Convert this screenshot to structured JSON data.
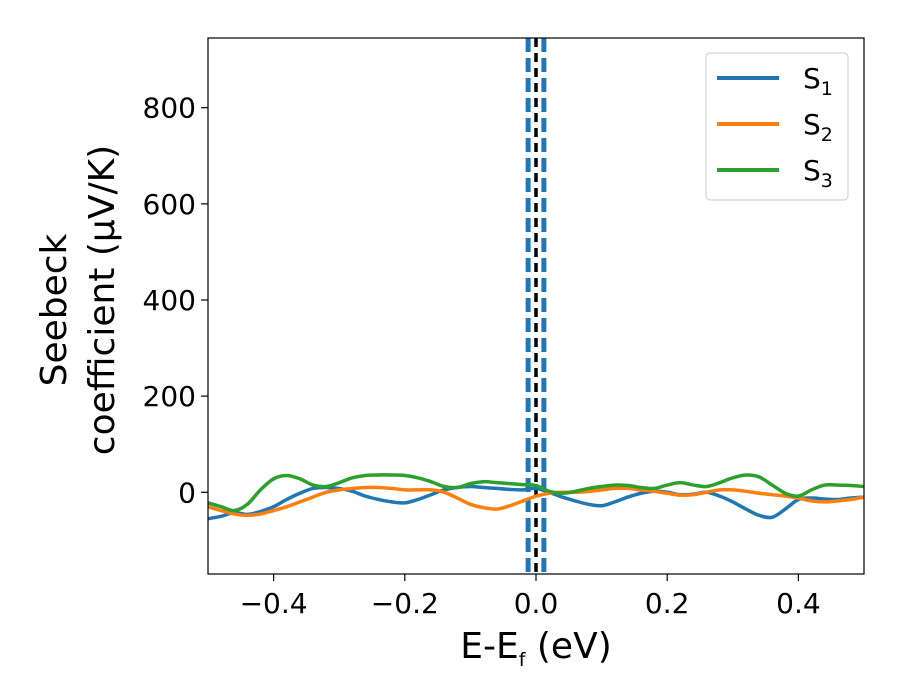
{
  "chart_data": {
    "type": "line",
    "xlabel_main": "E-E",
    "xlabel_sub": "f",
    "xlabel_tail": " (eV)",
    "ylabel_line1": "Seebeck",
    "ylabel_line2": "coefficient  (μV/K)",
    "xlim": [
      -0.5,
      0.5
    ],
    "ylim": [
      -170,
      945
    ],
    "xticks": [
      -0.4,
      -0.2,
      0.0,
      0.2,
      0.4
    ],
    "xtick_labels": [
      "−0.4",
      "−0.2",
      "0.0",
      "0.2",
      "0.4"
    ],
    "yticks": [
      0,
      200,
      400,
      600,
      800
    ],
    "ytick_labels": [
      "0",
      "200",
      "400",
      "600",
      "800"
    ],
    "grid": false,
    "legend_position": "top-right",
    "vlines": [
      {
        "x": -0.012,
        "style": "dashed",
        "color": "#1f77b4"
      },
      {
        "x": 0.0,
        "style": "dashed",
        "color": "#000000"
      },
      {
        "x": 0.012,
        "style": "dashed",
        "color": "#1f77b4"
      }
    ],
    "series": [
      {
        "name": "S",
        "name_sub": "1",
        "color": "#1f77b4",
        "x": [
          -0.5,
          -0.48,
          -0.46,
          -0.44,
          -0.42,
          -0.4,
          -0.38,
          -0.36,
          -0.34,
          -0.32,
          -0.3,
          -0.28,
          -0.26,
          -0.24,
          -0.22,
          -0.2,
          -0.18,
          -0.16,
          -0.14,
          -0.12,
          -0.1,
          -0.08,
          -0.06,
          -0.04,
          -0.02,
          0.0,
          0.02,
          0.04,
          0.06,
          0.08,
          0.1,
          0.12,
          0.14,
          0.16,
          0.18,
          0.2,
          0.22,
          0.24,
          0.26,
          0.28,
          0.3,
          0.32,
          0.34,
          0.36,
          0.38,
          0.4,
          0.42,
          0.44,
          0.46,
          0.48,
          0.5
        ],
        "y": [
          -55,
          -50,
          -42,
          -46,
          -40,
          -30,
          -15,
          -2,
          8,
          10,
          8,
          2,
          -8,
          -15,
          -20,
          -22,
          -15,
          -5,
          5,
          10,
          12,
          10,
          8,
          6,
          5,
          8,
          0,
          -10,
          -18,
          -25,
          -28,
          -20,
          -10,
          -2,
          2,
          0,
          -5,
          -4,
          0,
          -8,
          -20,
          -35,
          -48,
          -52,
          -35,
          -15,
          -12,
          -14,
          -15,
          -12,
          -10
        ]
      },
      {
        "name": "S",
        "name_sub": "2",
        "color": "#ff7f0e",
        "x": [
          -0.5,
          -0.48,
          -0.46,
          -0.44,
          -0.42,
          -0.4,
          -0.38,
          -0.36,
          -0.34,
          -0.32,
          -0.3,
          -0.28,
          -0.26,
          -0.24,
          -0.22,
          -0.2,
          -0.18,
          -0.16,
          -0.14,
          -0.12,
          -0.1,
          -0.08,
          -0.06,
          -0.04,
          -0.02,
          0.0,
          0.02,
          0.04,
          0.06,
          0.08,
          0.1,
          0.12,
          0.14,
          0.16,
          0.18,
          0.2,
          0.22,
          0.24,
          0.26,
          0.28,
          0.3,
          0.32,
          0.34,
          0.36,
          0.38,
          0.4,
          0.42,
          0.44,
          0.46,
          0.48,
          0.5
        ],
        "y": [
          -30,
          -38,
          -45,
          -48,
          -45,
          -38,
          -30,
          -20,
          -10,
          0,
          5,
          8,
          10,
          10,
          8,
          5,
          5,
          5,
          0,
          -12,
          -25,
          -32,
          -35,
          -28,
          -18,
          -8,
          -2,
          0,
          0,
          2,
          5,
          8,
          8,
          5,
          2,
          -2,
          -6,
          -5,
          0,
          5,
          5,
          2,
          -2,
          -5,
          -8,
          -12,
          -18,
          -20,
          -18,
          -15,
          -10
        ]
      },
      {
        "name": "S",
        "name_sub": "3",
        "color": "#2ca02c",
        "x": [
          -0.5,
          -0.48,
          -0.46,
          -0.44,
          -0.42,
          -0.4,
          -0.38,
          -0.36,
          -0.34,
          -0.32,
          -0.3,
          -0.28,
          -0.26,
          -0.24,
          -0.22,
          -0.2,
          -0.18,
          -0.16,
          -0.14,
          -0.12,
          -0.1,
          -0.08,
          -0.06,
          -0.04,
          -0.02,
          0.0,
          0.02,
          0.04,
          0.06,
          0.08,
          0.1,
          0.12,
          0.14,
          0.16,
          0.18,
          0.2,
          0.22,
          0.24,
          0.26,
          0.28,
          0.3,
          0.32,
          0.34,
          0.36,
          0.38,
          0.4,
          0.42,
          0.44,
          0.46,
          0.48,
          0.5
        ],
        "y": [
          -22,
          -30,
          -38,
          -25,
          5,
          28,
          35,
          28,
          15,
          12,
          20,
          30,
          35,
          36,
          36,
          35,
          30,
          22,
          12,
          10,
          18,
          22,
          20,
          18,
          16,
          14,
          2,
          -2,
          2,
          8,
          12,
          15,
          14,
          10,
          8,
          15,
          20,
          15,
          12,
          20,
          30,
          36,
          32,
          15,
          -2,
          -8,
          5,
          15,
          15,
          14,
          12
        ]
      }
    ]
  }
}
